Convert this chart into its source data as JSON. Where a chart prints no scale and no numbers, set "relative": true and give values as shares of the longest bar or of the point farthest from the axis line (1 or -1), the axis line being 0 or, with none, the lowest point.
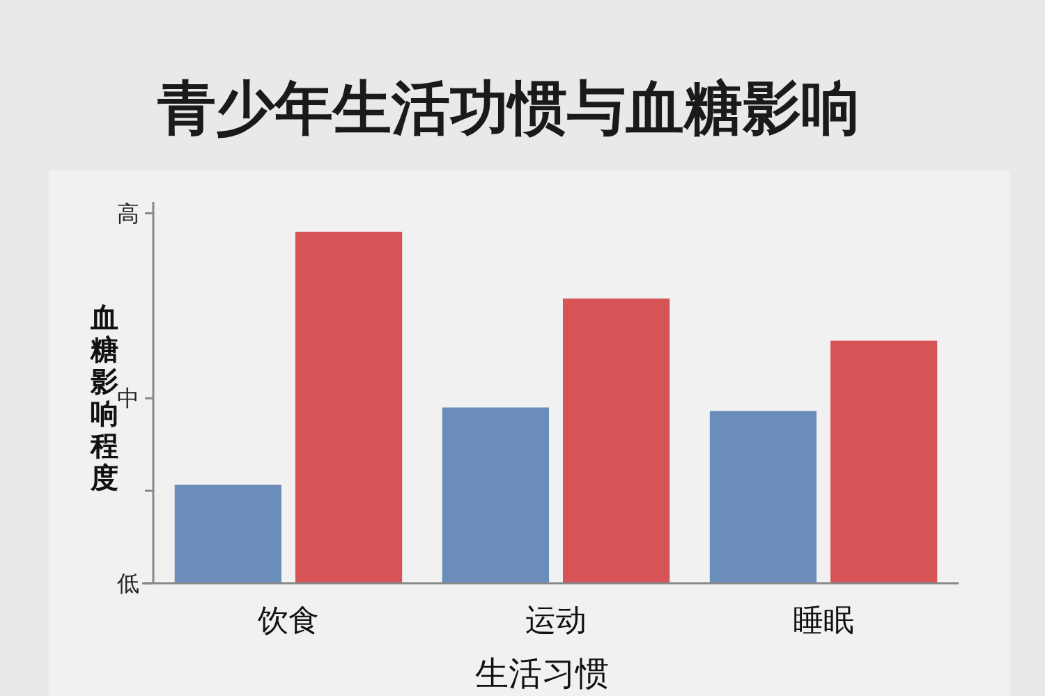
{
  "chart_data": {
    "type": "bar",
    "title": "青少年生活功惯与血糖影响",
    "xlabel": "生活习惯",
    "ylabel": "血糖影响程度",
    "categories": [
      "饮食",
      "运动",
      "睡眠"
    ],
    "relative": true,
    "series": [
      {
        "color": "#6a8dbb",
        "values": [
          0.28,
          0.5,
          0.49
        ]
      },
      {
        "color": "#d65356",
        "values": [
          1,
          0.81,
          0.69
        ]
      }
    ],
    "annotations": [
      "高",
      "中",
      "低"
    ]
  }
}
